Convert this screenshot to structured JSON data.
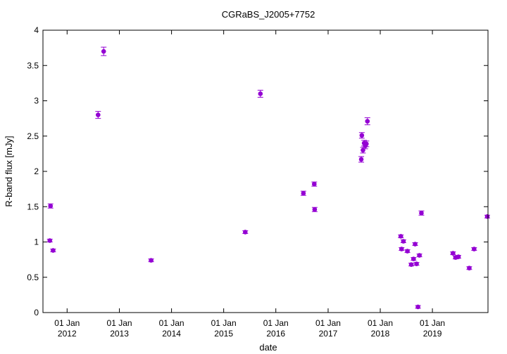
{
  "chart_data": {
    "type": "scatter",
    "title": "CGRaBS_J2005+7752",
    "xlabel": "date",
    "ylabel": "R-band flux [mJy]",
    "x_axis": "date",
    "xlim": [
      "2011-07-16",
      "2020-01-25"
    ],
    "ylim": [
      0,
      4
    ],
    "grid": false,
    "legend": "none",
    "marker_color": "#9400d3",
    "x_ticks": [
      {
        "date": "2012-01-01",
        "line1": "01 Jan",
        "line2": "2012"
      },
      {
        "date": "2013-01-01",
        "line1": "01 Jan",
        "line2": "2013"
      },
      {
        "date": "2014-01-01",
        "line1": "01 Jan",
        "line2": "2014"
      },
      {
        "date": "2015-01-01",
        "line1": "01 Jan",
        "line2": "2015"
      },
      {
        "date": "2016-01-01",
        "line1": "01 Jan",
        "line2": "2016"
      },
      {
        "date": "2017-01-01",
        "line1": "01 Jan",
        "line2": "2017"
      },
      {
        "date": "2018-01-01",
        "line1": "01 Jan",
        "line2": "2018"
      },
      {
        "date": "2019-01-01",
        "line1": "01 Jan",
        "line2": "2019"
      }
    ],
    "y_ticks": [
      {
        "value": 0,
        "label": "0"
      },
      {
        "value": 0.5,
        "label": "0.5"
      },
      {
        "value": 1,
        "label": "1"
      },
      {
        "value": 1.5,
        "label": "1.5"
      },
      {
        "value": 2,
        "label": "2"
      },
      {
        "value": 2.5,
        "label": "2.5"
      },
      {
        "value": 3,
        "label": "3"
      },
      {
        "value": 3.5,
        "label": "3.5"
      },
      {
        "value": 4,
        "label": "4"
      }
    ],
    "points": [
      {
        "x": "2011-09-02",
        "y": 1.02,
        "err": 0.02
      },
      {
        "x": "2011-09-07",
        "y": 1.51,
        "err": 0.03
      },
      {
        "x": "2011-09-25",
        "y": 0.88,
        "err": 0.02
      },
      {
        "x": "2012-08-05",
        "y": 2.8,
        "err": 0.05
      },
      {
        "x": "2012-09-13",
        "y": 3.7,
        "err": 0.06
      },
      {
        "x": "2013-08-11",
        "y": 0.74,
        "err": 0.02
      },
      {
        "x": "2015-06-01",
        "y": 1.14,
        "err": 0.02
      },
      {
        "x": "2015-09-15",
        "y": 3.1,
        "err": 0.05
      },
      {
        "x": "2016-07-12",
        "y": 1.69,
        "err": 0.03
      },
      {
        "x": "2016-09-26",
        "y": 1.82,
        "err": 0.03
      },
      {
        "x": "2016-09-29",
        "y": 1.46,
        "err": 0.03
      },
      {
        "x": "2017-08-21",
        "y": 2.17,
        "err": 0.04
      },
      {
        "x": "2017-08-25",
        "y": 2.51,
        "err": 0.04
      },
      {
        "x": "2017-09-02",
        "y": 2.3,
        "err": 0.04
      },
      {
        "x": "2017-09-10",
        "y": 2.4,
        "err": 0.04
      },
      {
        "x": "2017-09-18",
        "y": 2.36,
        "err": 0.04
      },
      {
        "x": "2017-09-26",
        "y": 2.39,
        "err": 0.04
      },
      {
        "x": "2017-10-03",
        "y": 2.71,
        "err": 0.05
      },
      {
        "x": "2018-05-25",
        "y": 1.08,
        "err": 0.02
      },
      {
        "x": "2018-05-30",
        "y": 0.9,
        "err": 0.02
      },
      {
        "x": "2018-06-12",
        "y": 1.01,
        "err": 0.02
      },
      {
        "x": "2018-07-10",
        "y": 0.87,
        "err": 0.02
      },
      {
        "x": "2018-08-06",
        "y": 0.68,
        "err": 0.02
      },
      {
        "x": "2018-08-22",
        "y": 0.76,
        "err": 0.02
      },
      {
        "x": "2018-09-02",
        "y": 0.97,
        "err": 0.02
      },
      {
        "x": "2018-09-12",
        "y": 0.69,
        "err": 0.02
      },
      {
        "x": "2018-09-22",
        "y": 0.08,
        "err": 0.02
      },
      {
        "x": "2018-10-02",
        "y": 0.81,
        "err": 0.02
      },
      {
        "x": "2018-10-16",
        "y": 1.41,
        "err": 0.03
      },
      {
        "x": "2019-05-25",
        "y": 0.84,
        "err": 0.02
      },
      {
        "x": "2019-06-12",
        "y": 0.78,
        "err": 0.02
      },
      {
        "x": "2019-07-02",
        "y": 0.79,
        "err": 0.02
      },
      {
        "x": "2019-09-16",
        "y": 0.63,
        "err": 0.02
      },
      {
        "x": "2019-10-20",
        "y": 0.9,
        "err": 0.02
      },
      {
        "x": "2020-01-20",
        "y": 1.36,
        "err": 0.02
      }
    ]
  }
}
